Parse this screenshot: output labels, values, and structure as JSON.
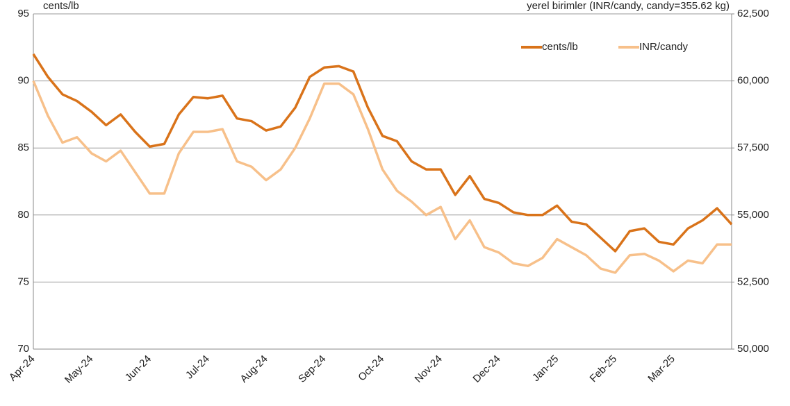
{
  "chart_data": {
    "type": "line",
    "y_label": "cents/lb",
    "y2_label": "yerel birimler (INR/candy, candy=355.62 kg)",
    "categories": [
      "Apr-24",
      null,
      null,
      null,
      "May-24",
      null,
      null,
      null,
      "Jun-24",
      null,
      null,
      null,
      "Jul-24",
      null,
      null,
      null,
      "Aug-24",
      null,
      null,
      null,
      "Sep-24",
      null,
      null,
      null,
      "Oct-24",
      null,
      null,
      null,
      "Nov-24",
      null,
      null,
      null,
      "Dec-24",
      null,
      null,
      null,
      "Jan-25",
      null,
      null,
      null,
      "Feb-25",
      null,
      null,
      null,
      "Mar-25",
      null,
      null,
      null,
      null
    ],
    "series": [
      {
        "name": "cents/lb",
        "color": "#d9731a",
        "values": [
          92,
          90.3,
          89,
          88.5,
          87.7,
          86.7,
          87.5,
          86.2,
          85.1,
          85.3,
          87.5,
          88.8,
          88.7,
          88.9,
          87.2,
          87.0,
          86.3,
          86.6,
          88.0,
          90.3,
          91.0,
          91.1,
          90.7,
          88.0,
          85.9,
          85.5,
          84.0,
          83.4,
          83.4,
          81.5,
          82.9,
          81.2,
          80.9,
          80.2,
          80.0,
          80.0,
          80.7,
          79.5,
          79.3,
          78.3,
          77.3,
          78.8,
          79.0,
          78.0,
          77.8,
          79.0,
          79.6,
          80.5,
          79.3
        ]
      },
      {
        "name": "INR/candy",
        "color": "#f7c08a",
        "axis": "y2",
        "values": [
          60000,
          58700,
          57700,
          57900,
          57300,
          57000,
          57400,
          56600,
          55800,
          55800,
          57300,
          58100,
          58100,
          58200,
          57000,
          56800,
          56300,
          56700,
          57500,
          58600,
          59900,
          59900,
          59500,
          58200,
          56700,
          55900,
          55500,
          55000,
          55300,
          54100,
          54800,
          53800,
          53600,
          53200,
          53100,
          53400,
          54100,
          53800,
          53500,
          53000,
          52850,
          53500,
          53550,
          53300,
          52900,
          53300,
          53200,
          53900,
          53900
        ]
      }
    ],
    "ylim": [
      70,
      95
    ],
    "yticks": [
      70,
      75,
      80,
      85,
      90,
      95
    ],
    "y2lim": [
      50000,
      62500
    ],
    "y2ticks": [
      {
        "value": 50000,
        "label": "50,000"
      },
      {
        "value": 52500,
        "label": "52,500"
      },
      {
        "value": 55000,
        "label": "55,000"
      },
      {
        "value": 57500,
        "label": "57,500"
      },
      {
        "value": 60000,
        "label": "60,000"
      },
      {
        "value": 62500,
        "label": "62,500"
      }
    ],
    "grid": true,
    "legend": "upper right"
  }
}
